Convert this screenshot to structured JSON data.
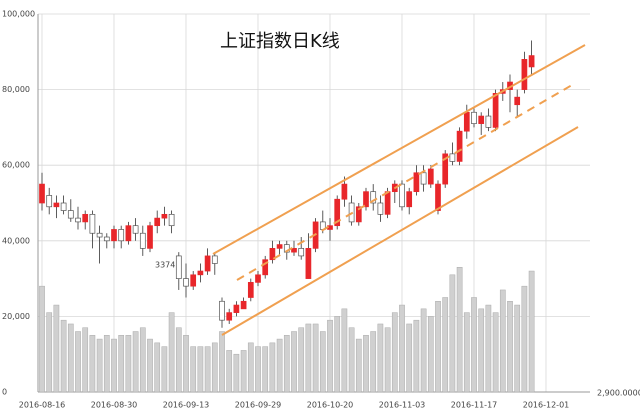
{
  "chart_data": {
    "type": "candlestick",
    "title": "上证指数日K线",
    "annotation": "3374",
    "categories": [
      "2016-08-16",
      null,
      null,
      null,
      null,
      null,
      null,
      null,
      null,
      null,
      "2016-08-30",
      null,
      null,
      null,
      null,
      null,
      null,
      null,
      null,
      null,
      "2016-09-13",
      null,
      null,
      null,
      null,
      null,
      null,
      null,
      null,
      null,
      "2016-09-29",
      null,
      null,
      null,
      null,
      null,
      null,
      null,
      null,
      null,
      "2016-10-20",
      null,
      null,
      null,
      null,
      null,
      null,
      null,
      null,
      null,
      "2016-11-03",
      null,
      null,
      null,
      null,
      null,
      null,
      null,
      null,
      null,
      "2016-11-17",
      null,
      null,
      null,
      null,
      null,
      null,
      null,
      null,
      null,
      "2016-12-01"
    ],
    "open": [
      50000,
      52000,
      49000,
      50000,
      48000,
      46000,
      45000,
      47000,
      42000,
      41000,
      40000,
      43000,
      40000,
      44000,
      42000,
      38000,
      44000,
      46000,
      47000,
      36000,
      30000,
      28000,
      31000,
      32000,
      36000,
      24000,
      19000,
      21000,
      22000,
      25000,
      29000,
      31000,
      35000,
      38000,
      39000,
      37000,
      38000,
      30000,
      38000,
      45000,
      43000,
      44000,
      51000,
      50000,
      45000,
      49000,
      53000,
      50000,
      47000,
      53000,
      55000,
      49000,
      53000,
      58000,
      55000,
      48000,
      55000,
      63000,
      61000,
      69000,
      74000,
      71000,
      73000,
      70000,
      79000,
      80000,
      76000,
      80000,
      86000,
      null,
      null
    ],
    "high": [
      58000,
      54000,
      52000,
      52000,
      51000,
      49000,
      48000,
      48000,
      44000,
      42000,
      44000,
      44000,
      45000,
      46000,
      44000,
      45000,
      48000,
      49000,
      48000,
      37000,
      34000,
      32000,
      34000,
      38000,
      37000,
      25000,
      22000,
      24000,
      25000,
      30000,
      32000,
      36000,
      40000,
      40000,
      40000,
      40000,
      41000,
      42000,
      46000,
      48000,
      46000,
      52000,
      57000,
      52000,
      50000,
      54000,
      55000,
      52000,
      54000,
      56000,
      56000,
      54000,
      60000,
      60000,
      60000,
      56000,
      64000,
      66000,
      70000,
      76000,
      75000,
      74000,
      75000,
      80000,
      82000,
      84000,
      80000,
      90000,
      93000,
      null,
      null
    ],
    "low": [
      48000,
      47000,
      46000,
      47000,
      45000,
      43000,
      43000,
      38000,
      34000,
      38000,
      38000,
      38000,
      39000,
      40000,
      36000,
      37000,
      42000,
      44000,
      42000,
      27000,
      25000,
      27000,
      29000,
      31000,
      31000,
      17000,
      18000,
      20000,
      22000,
      24000,
      28000,
      30000,
      34000,
      36000,
      35000,
      36000,
      35000,
      30000,
      37000,
      42000,
      40000,
      43000,
      49000,
      44000,
      44000,
      48000,
      48000,
      45000,
      46000,
      50000,
      48000,
      47000,
      52000,
      53000,
      54000,
      47000,
      54000,
      60000,
      60000,
      67000,
      70000,
      68000,
      69000,
      69000,
      77000,
      74000,
      73000,
      79000,
      84000,
      null,
      null
    ],
    "close": [
      55000,
      49000,
      50000,
      48000,
      46000,
      45000,
      47000,
      42000,
      41000,
      40000,
      43000,
      40000,
      44000,
      42000,
      38000,
      44000,
      46000,
      47000,
      44000,
      30000,
      28000,
      31000,
      32000,
      36000,
      34000,
      19000,
      21000,
      23000,
      24000,
      29000,
      31000,
      35000,
      38000,
      39000,
      37000,
      38000,
      36000,
      38000,
      45000,
      43000,
      44000,
      51000,
      55000,
      45000,
      49000,
      53000,
      50000,
      47000,
      53000,
      55000,
      49000,
      53000,
      58000,
      55000,
      59000,
      55000,
      63000,
      61000,
      69000,
      74000,
      71000,
      73000,
      70000,
      79000,
      80000,
      82000,
      78000,
      88000,
      89000,
      null,
      null
    ],
    "volume": [
      28000,
      21000,
      23000,
      19000,
      18000,
      16000,
      17000,
      15000,
      14000,
      15000,
      14000,
      15000,
      15000,
      16000,
      17000,
      14000,
      13000,
      12000,
      21000,
      17000,
      15000,
      12000,
      12000,
      12000,
      13000,
      16000,
      11000,
      10000,
      11000,
      13000,
      12000,
      12000,
      13000,
      14000,
      15000,
      16000,
      17000,
      18000,
      18000,
      16000,
      19000,
      20000,
      22000,
      17000,
      14000,
      15000,
      16000,
      18000,
      17000,
      21000,
      23000,
      18000,
      19000,
      22000,
      20000,
      24000,
      25000,
      31000,
      33000,
      21000,
      25000,
      22000,
      23000,
      21000,
      27000,
      24000,
      23000,
      28000,
      32000,
      null,
      null
    ],
    "up_color": "#e8262a",
    "down_color": "#ffffff",
    "volume_color": "#d0d0d0",
    "channel_color": "#f0a050",
    "ylim": [
      0,
      100000
    ],
    "yticks": [
      0,
      {
        "value": 20000,
        "label": "20,000"
      },
      {
        "value": 40000,
        "label": "40,000"
      },
      {
        "value": 60000,
        "label": "60,000"
      },
      {
        "value": 80000,
        "label": "80,000"
      },
      {
        "value": 100000,
        "label": "100,000"
      }
    ],
    "y2lim": [
      2900,
      4150
    ],
    "y2ticks": [
      {
        "value": 2900,
        "label": "2,900.0000"
      }
    ],
    "grid": true
  }
}
